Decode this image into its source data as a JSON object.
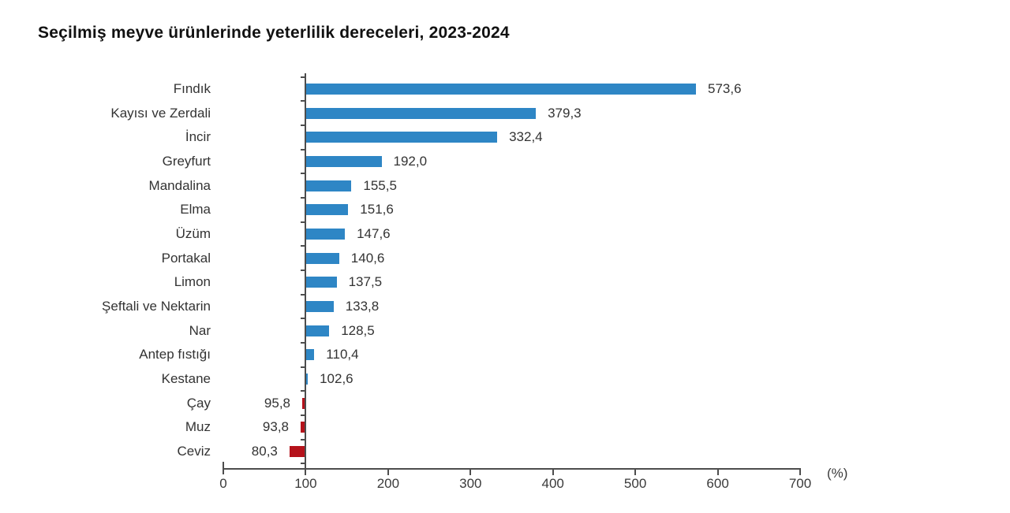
{
  "title": "Seçilmiş meyve ürünlerinde yeterlilik dereceleri, 2023-2024",
  "chart_data": {
    "type": "bar",
    "orientation": "horizontal",
    "baseline": 100,
    "categories": [
      "Fındık",
      "Kayısı ve Zerdali",
      "İncir",
      "Greyfurt",
      "Mandalina",
      "Elma",
      "Üzüm",
      "Portakal",
      "Limon",
      "Şeftali ve Nektarin",
      "Nar",
      "Antep fıstığı",
      "Kestane",
      "Çay",
      "Muz",
      "Ceviz"
    ],
    "values": [
      573.6,
      379.3,
      332.4,
      192.0,
      155.5,
      151.6,
      147.6,
      140.6,
      137.5,
      133.8,
      128.5,
      110.4,
      102.6,
      95.8,
      93.8,
      80.3
    ],
    "value_labels": [
      "573,6",
      "379,3",
      "332,4",
      "192,0",
      "155,5",
      "151,6",
      "147,6",
      "140,6",
      "137,5",
      "133,8",
      "128,5",
      "110,4",
      "102,6",
      "95,8",
      "93,8",
      "80,3"
    ],
    "xlabel": "(%)",
    "x_ticks": [
      0,
      100,
      200,
      300,
      400,
      500,
      600,
      700
    ],
    "x_tick_labels": [
      "0",
      "100",
      "200",
      "300",
      "400",
      "500",
      "600",
      "700"
    ],
    "xlim": [
      0,
      700
    ],
    "grid": false,
    "legend": false,
    "colors": {
      "above_baseline_bar": "#2e86c5",
      "below_baseline_bar": "#b5121b",
      "axis": "#4d4d4d",
      "text": "#333333",
      "title_text": "#111111",
      "background": "#ffffff"
    }
  }
}
